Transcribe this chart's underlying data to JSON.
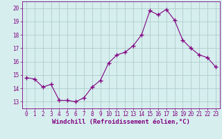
{
  "x": [
    0,
    1,
    2,
    3,
    4,
    5,
    6,
    7,
    8,
    9,
    10,
    11,
    12,
    13,
    14,
    15,
    16,
    17,
    18,
    19,
    20,
    21,
    22,
    23
  ],
  "y": [
    14.8,
    14.7,
    14.1,
    14.3,
    13.1,
    13.1,
    13.0,
    13.3,
    14.1,
    14.6,
    15.9,
    16.5,
    16.7,
    17.2,
    18.0,
    19.8,
    19.5,
    19.9,
    19.1,
    17.6,
    17.0,
    16.5,
    16.3,
    15.6
  ],
  "line_color": "#800080",
  "marker": "+",
  "marker_size": 4,
  "bg_color": "#d6eeee",
  "grid_color": "#b0cccc",
  "xlabel": "Windchill (Refroidissement éolien,°C)",
  "xlim": [
    -0.5,
    23.5
  ],
  "ylim": [
    12.5,
    20.5
  ],
  "yticks": [
    13,
    14,
    15,
    16,
    17,
    18,
    19,
    20
  ],
  "xticks": [
    0,
    1,
    2,
    3,
    4,
    5,
    6,
    7,
    8,
    9,
    10,
    11,
    12,
    13,
    14,
    15,
    16,
    17,
    18,
    19,
    20,
    21,
    22,
    23
  ],
  "font_color": "#800080",
  "tick_font_size": 5.5,
  "label_font_size": 6.5
}
